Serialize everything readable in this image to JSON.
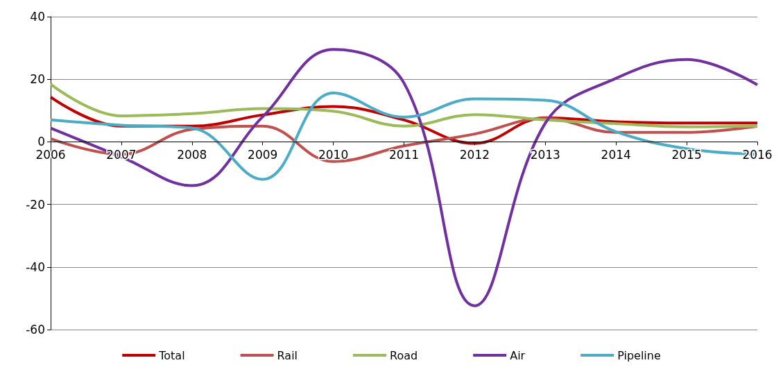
{
  "chart_data": {
    "type": "line",
    "categories": [
      "2006",
      "2007",
      "2008",
      "2009",
      "2010",
      "2011",
      "2012",
      "2013",
      "2014",
      "2015",
      "2016"
    ],
    "series": [
      {
        "name": "Total",
        "color": "#c00000",
        "values": [
          14.3,
          5,
          5,
          8.6,
          11.3,
          7,
          -0.5,
          7.7,
          6.4,
          6,
          6
        ]
      },
      {
        "name": "Rail",
        "color": "#c0504d",
        "values": [
          1,
          -4,
          4,
          5,
          -6.3,
          -1.3,
          2.5,
          7.5,
          3,
          3,
          5
        ]
      },
      {
        "name": "Road",
        "color": "#9bbb59",
        "values": [
          18.4,
          8.3,
          9,
          10.6,
          9.8,
          5,
          8.7,
          7,
          5.8,
          4.8,
          5
        ]
      },
      {
        "name": "Air",
        "color": "#7030a0",
        "values": [
          4.4,
          -4.8,
          -14,
          8,
          29.5,
          18.8,
          -52.4,
          6,
          20.3,
          26.3,
          18.2
        ]
      },
      {
        "name": "Pipeline",
        "color": "#4bacc6",
        "values": [
          7,
          5.3,
          4.4,
          -12,
          15.6,
          7.9,
          13.7,
          13.3,
          3.2,
          -2.2,
          -4
        ]
      }
    ],
    "ylim": [
      -60,
      40
    ],
    "yticks": [
      -60,
      -40,
      -20,
      0,
      20,
      40
    ],
    "grid": "y",
    "legend": "bottom",
    "marker": "none"
  }
}
